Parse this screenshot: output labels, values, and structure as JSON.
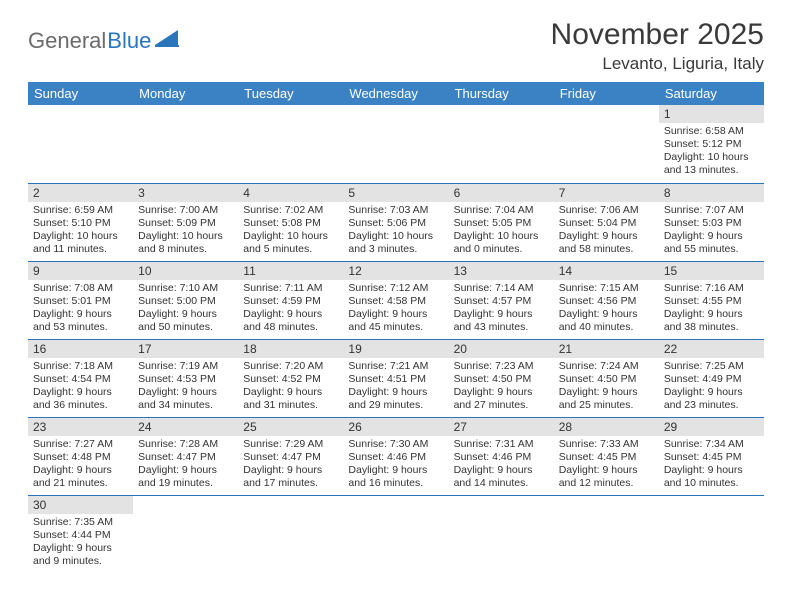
{
  "logo": {
    "text1": "General",
    "text2": "Blue"
  },
  "title": "November 2025",
  "location": "Levanto, Liguria, Italy",
  "colors": {
    "header_bg": "#3b82c4",
    "header_text": "#ffffff",
    "daynum_bg": "#e3e3e3",
    "cell_border": "#2a75bb",
    "logo_gray": "#6b6b6b",
    "logo_blue": "#2a75bb",
    "text": "#333333",
    "background": "#ffffff"
  },
  "day_names": [
    "Sunday",
    "Monday",
    "Tuesday",
    "Wednesday",
    "Thursday",
    "Friday",
    "Saturday"
  ],
  "weeks": [
    [
      null,
      null,
      null,
      null,
      null,
      null,
      {
        "n": "1",
        "sr": "Sunrise: 6:58 AM",
        "ss": "Sunset: 5:12 PM",
        "dl1": "Daylight: 10 hours",
        "dl2": "and 13 minutes."
      }
    ],
    [
      {
        "n": "2",
        "sr": "Sunrise: 6:59 AM",
        "ss": "Sunset: 5:10 PM",
        "dl1": "Daylight: 10 hours",
        "dl2": "and 11 minutes."
      },
      {
        "n": "3",
        "sr": "Sunrise: 7:00 AM",
        "ss": "Sunset: 5:09 PM",
        "dl1": "Daylight: 10 hours",
        "dl2": "and 8 minutes."
      },
      {
        "n": "4",
        "sr": "Sunrise: 7:02 AM",
        "ss": "Sunset: 5:08 PM",
        "dl1": "Daylight: 10 hours",
        "dl2": "and 5 minutes."
      },
      {
        "n": "5",
        "sr": "Sunrise: 7:03 AM",
        "ss": "Sunset: 5:06 PM",
        "dl1": "Daylight: 10 hours",
        "dl2": "and 3 minutes."
      },
      {
        "n": "6",
        "sr": "Sunrise: 7:04 AM",
        "ss": "Sunset: 5:05 PM",
        "dl1": "Daylight: 10 hours",
        "dl2": "and 0 minutes."
      },
      {
        "n": "7",
        "sr": "Sunrise: 7:06 AM",
        "ss": "Sunset: 5:04 PM",
        "dl1": "Daylight: 9 hours",
        "dl2": "and 58 minutes."
      },
      {
        "n": "8",
        "sr": "Sunrise: 7:07 AM",
        "ss": "Sunset: 5:03 PM",
        "dl1": "Daylight: 9 hours",
        "dl2": "and 55 minutes."
      }
    ],
    [
      {
        "n": "9",
        "sr": "Sunrise: 7:08 AM",
        "ss": "Sunset: 5:01 PM",
        "dl1": "Daylight: 9 hours",
        "dl2": "and 53 minutes."
      },
      {
        "n": "10",
        "sr": "Sunrise: 7:10 AM",
        "ss": "Sunset: 5:00 PM",
        "dl1": "Daylight: 9 hours",
        "dl2": "and 50 minutes."
      },
      {
        "n": "11",
        "sr": "Sunrise: 7:11 AM",
        "ss": "Sunset: 4:59 PM",
        "dl1": "Daylight: 9 hours",
        "dl2": "and 48 minutes."
      },
      {
        "n": "12",
        "sr": "Sunrise: 7:12 AM",
        "ss": "Sunset: 4:58 PM",
        "dl1": "Daylight: 9 hours",
        "dl2": "and 45 minutes."
      },
      {
        "n": "13",
        "sr": "Sunrise: 7:14 AM",
        "ss": "Sunset: 4:57 PM",
        "dl1": "Daylight: 9 hours",
        "dl2": "and 43 minutes."
      },
      {
        "n": "14",
        "sr": "Sunrise: 7:15 AM",
        "ss": "Sunset: 4:56 PM",
        "dl1": "Daylight: 9 hours",
        "dl2": "and 40 minutes."
      },
      {
        "n": "15",
        "sr": "Sunrise: 7:16 AM",
        "ss": "Sunset: 4:55 PM",
        "dl1": "Daylight: 9 hours",
        "dl2": "and 38 minutes."
      }
    ],
    [
      {
        "n": "16",
        "sr": "Sunrise: 7:18 AM",
        "ss": "Sunset: 4:54 PM",
        "dl1": "Daylight: 9 hours",
        "dl2": "and 36 minutes."
      },
      {
        "n": "17",
        "sr": "Sunrise: 7:19 AM",
        "ss": "Sunset: 4:53 PM",
        "dl1": "Daylight: 9 hours",
        "dl2": "and 34 minutes."
      },
      {
        "n": "18",
        "sr": "Sunrise: 7:20 AM",
        "ss": "Sunset: 4:52 PM",
        "dl1": "Daylight: 9 hours",
        "dl2": "and 31 minutes."
      },
      {
        "n": "19",
        "sr": "Sunrise: 7:21 AM",
        "ss": "Sunset: 4:51 PM",
        "dl1": "Daylight: 9 hours",
        "dl2": "and 29 minutes."
      },
      {
        "n": "20",
        "sr": "Sunrise: 7:23 AM",
        "ss": "Sunset: 4:50 PM",
        "dl1": "Daylight: 9 hours",
        "dl2": "and 27 minutes."
      },
      {
        "n": "21",
        "sr": "Sunrise: 7:24 AM",
        "ss": "Sunset: 4:50 PM",
        "dl1": "Daylight: 9 hours",
        "dl2": "and 25 minutes."
      },
      {
        "n": "22",
        "sr": "Sunrise: 7:25 AM",
        "ss": "Sunset: 4:49 PM",
        "dl1": "Daylight: 9 hours",
        "dl2": "and 23 minutes."
      }
    ],
    [
      {
        "n": "23",
        "sr": "Sunrise: 7:27 AM",
        "ss": "Sunset: 4:48 PM",
        "dl1": "Daylight: 9 hours",
        "dl2": "and 21 minutes."
      },
      {
        "n": "24",
        "sr": "Sunrise: 7:28 AM",
        "ss": "Sunset: 4:47 PM",
        "dl1": "Daylight: 9 hours",
        "dl2": "and 19 minutes."
      },
      {
        "n": "25",
        "sr": "Sunrise: 7:29 AM",
        "ss": "Sunset: 4:47 PM",
        "dl1": "Daylight: 9 hours",
        "dl2": "and 17 minutes."
      },
      {
        "n": "26",
        "sr": "Sunrise: 7:30 AM",
        "ss": "Sunset: 4:46 PM",
        "dl1": "Daylight: 9 hours",
        "dl2": "and 16 minutes."
      },
      {
        "n": "27",
        "sr": "Sunrise: 7:31 AM",
        "ss": "Sunset: 4:46 PM",
        "dl1": "Daylight: 9 hours",
        "dl2": "and 14 minutes."
      },
      {
        "n": "28",
        "sr": "Sunrise: 7:33 AM",
        "ss": "Sunset: 4:45 PM",
        "dl1": "Daylight: 9 hours",
        "dl2": "and 12 minutes."
      },
      {
        "n": "29",
        "sr": "Sunrise: 7:34 AM",
        "ss": "Sunset: 4:45 PM",
        "dl1": "Daylight: 9 hours",
        "dl2": "and 10 minutes."
      }
    ],
    [
      {
        "n": "30",
        "sr": "Sunrise: 7:35 AM",
        "ss": "Sunset: 4:44 PM",
        "dl1": "Daylight: 9 hours",
        "dl2": "and 9 minutes."
      },
      null,
      null,
      null,
      null,
      null,
      null
    ]
  ]
}
